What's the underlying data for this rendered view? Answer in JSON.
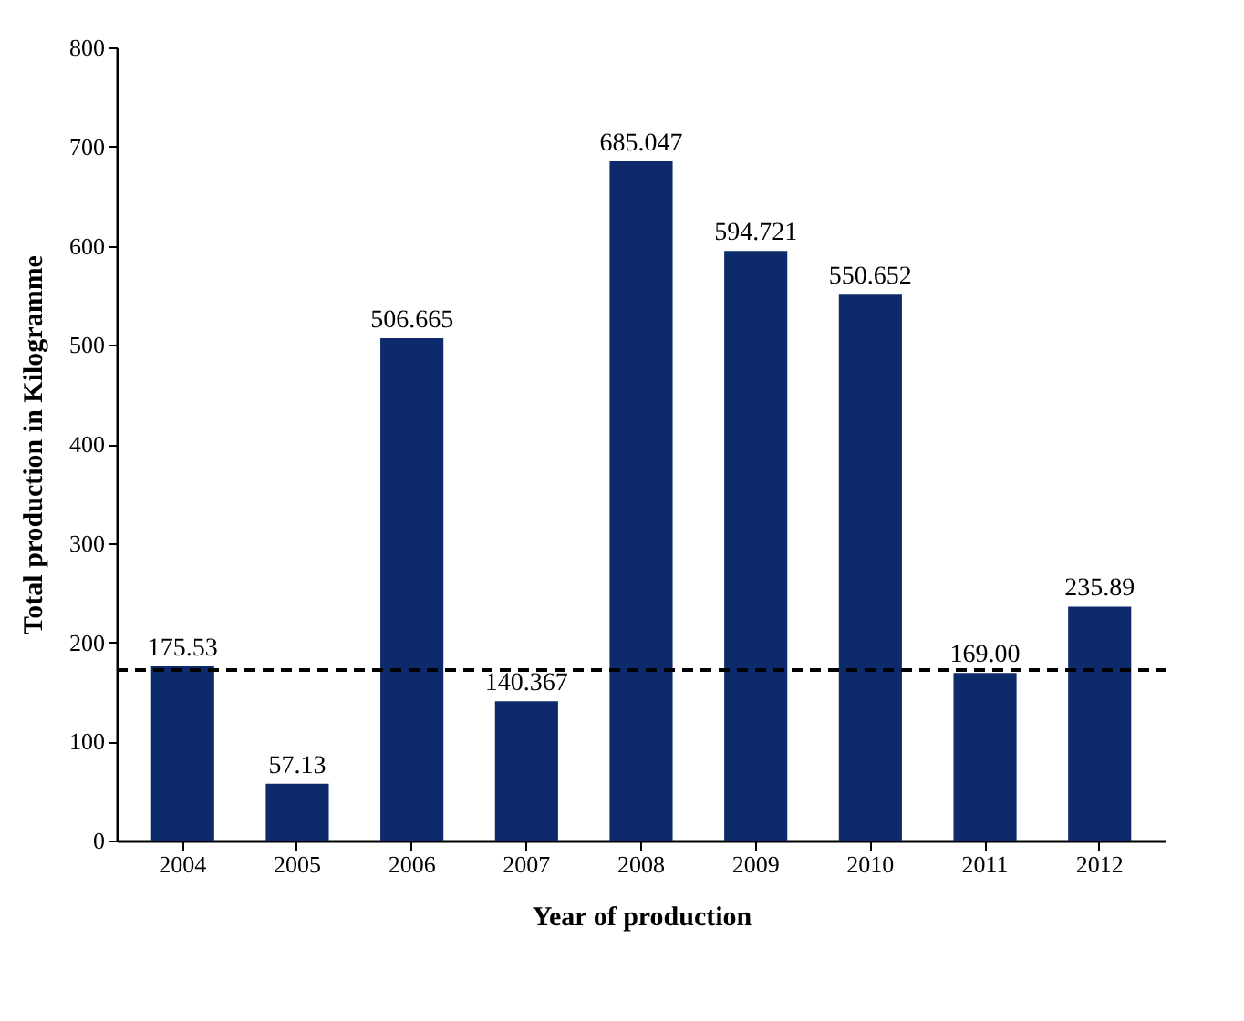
{
  "chart_data": {
    "type": "bar",
    "xlabel": "Year of production",
    "ylabel": "Total production in Kilogramme",
    "categories": [
      "2004",
      "2005",
      "2006",
      "2007",
      "2008",
      "2009",
      "2010",
      "2011",
      "2012"
    ],
    "values": [
      175.53,
      57.13,
      506.665,
      140.367,
      685.047,
      594.721,
      550.652,
      169.0,
      235.89
    ],
    "value_labels": [
      "175.53",
      "57.13",
      "506.665",
      "140.367",
      "685.047",
      "594.721",
      "550.652",
      "169.00",
      "235.89"
    ],
    "color": "#0d2a6b",
    "ylim": [
      0,
      800
    ],
    "yticks": [
      0,
      100,
      200,
      300,
      400,
      500,
      600,
      700,
      800
    ],
    "grid": false,
    "ref_lines": [
      {
        "axis": "y",
        "value": 172,
        "color": "#000000",
        "line_style": "dashed"
      }
    ]
  }
}
